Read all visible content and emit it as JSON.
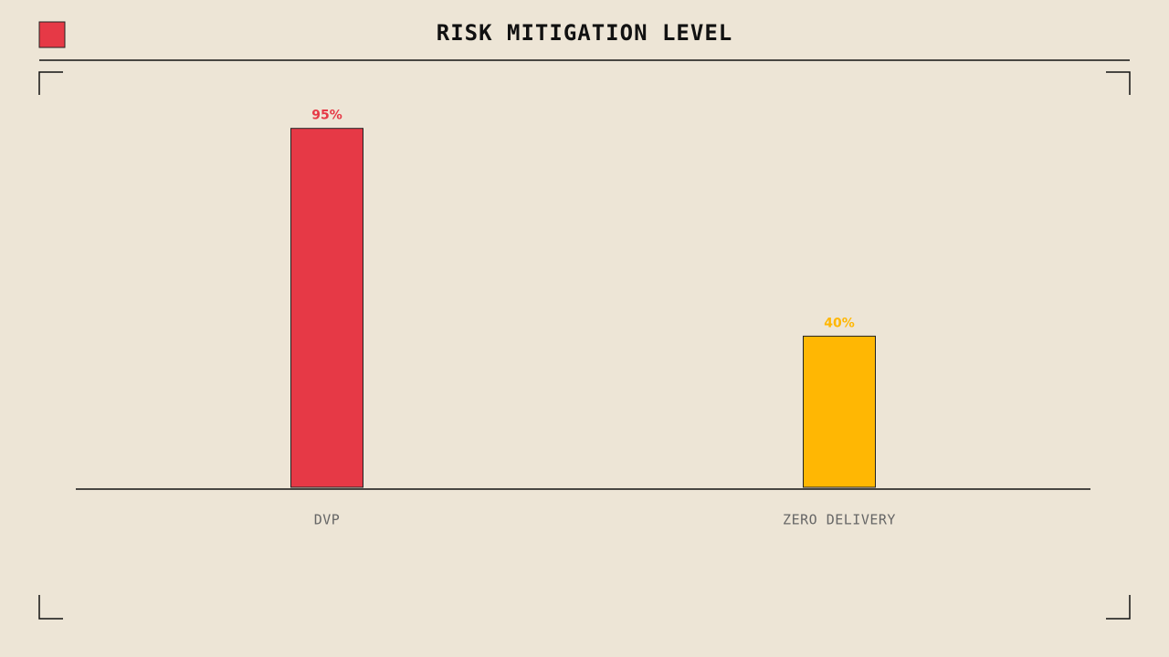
{
  "chart_data": {
    "type": "bar",
    "title": "RISK MITIGATION LEVEL",
    "categories": [
      "DVP",
      "ZERO DELIVERY"
    ],
    "values": [
      95,
      40
    ],
    "value_labels": [
      "95%",
      "40%"
    ],
    "colors": [
      "#e63946",
      "#ffb703"
    ]
  }
}
